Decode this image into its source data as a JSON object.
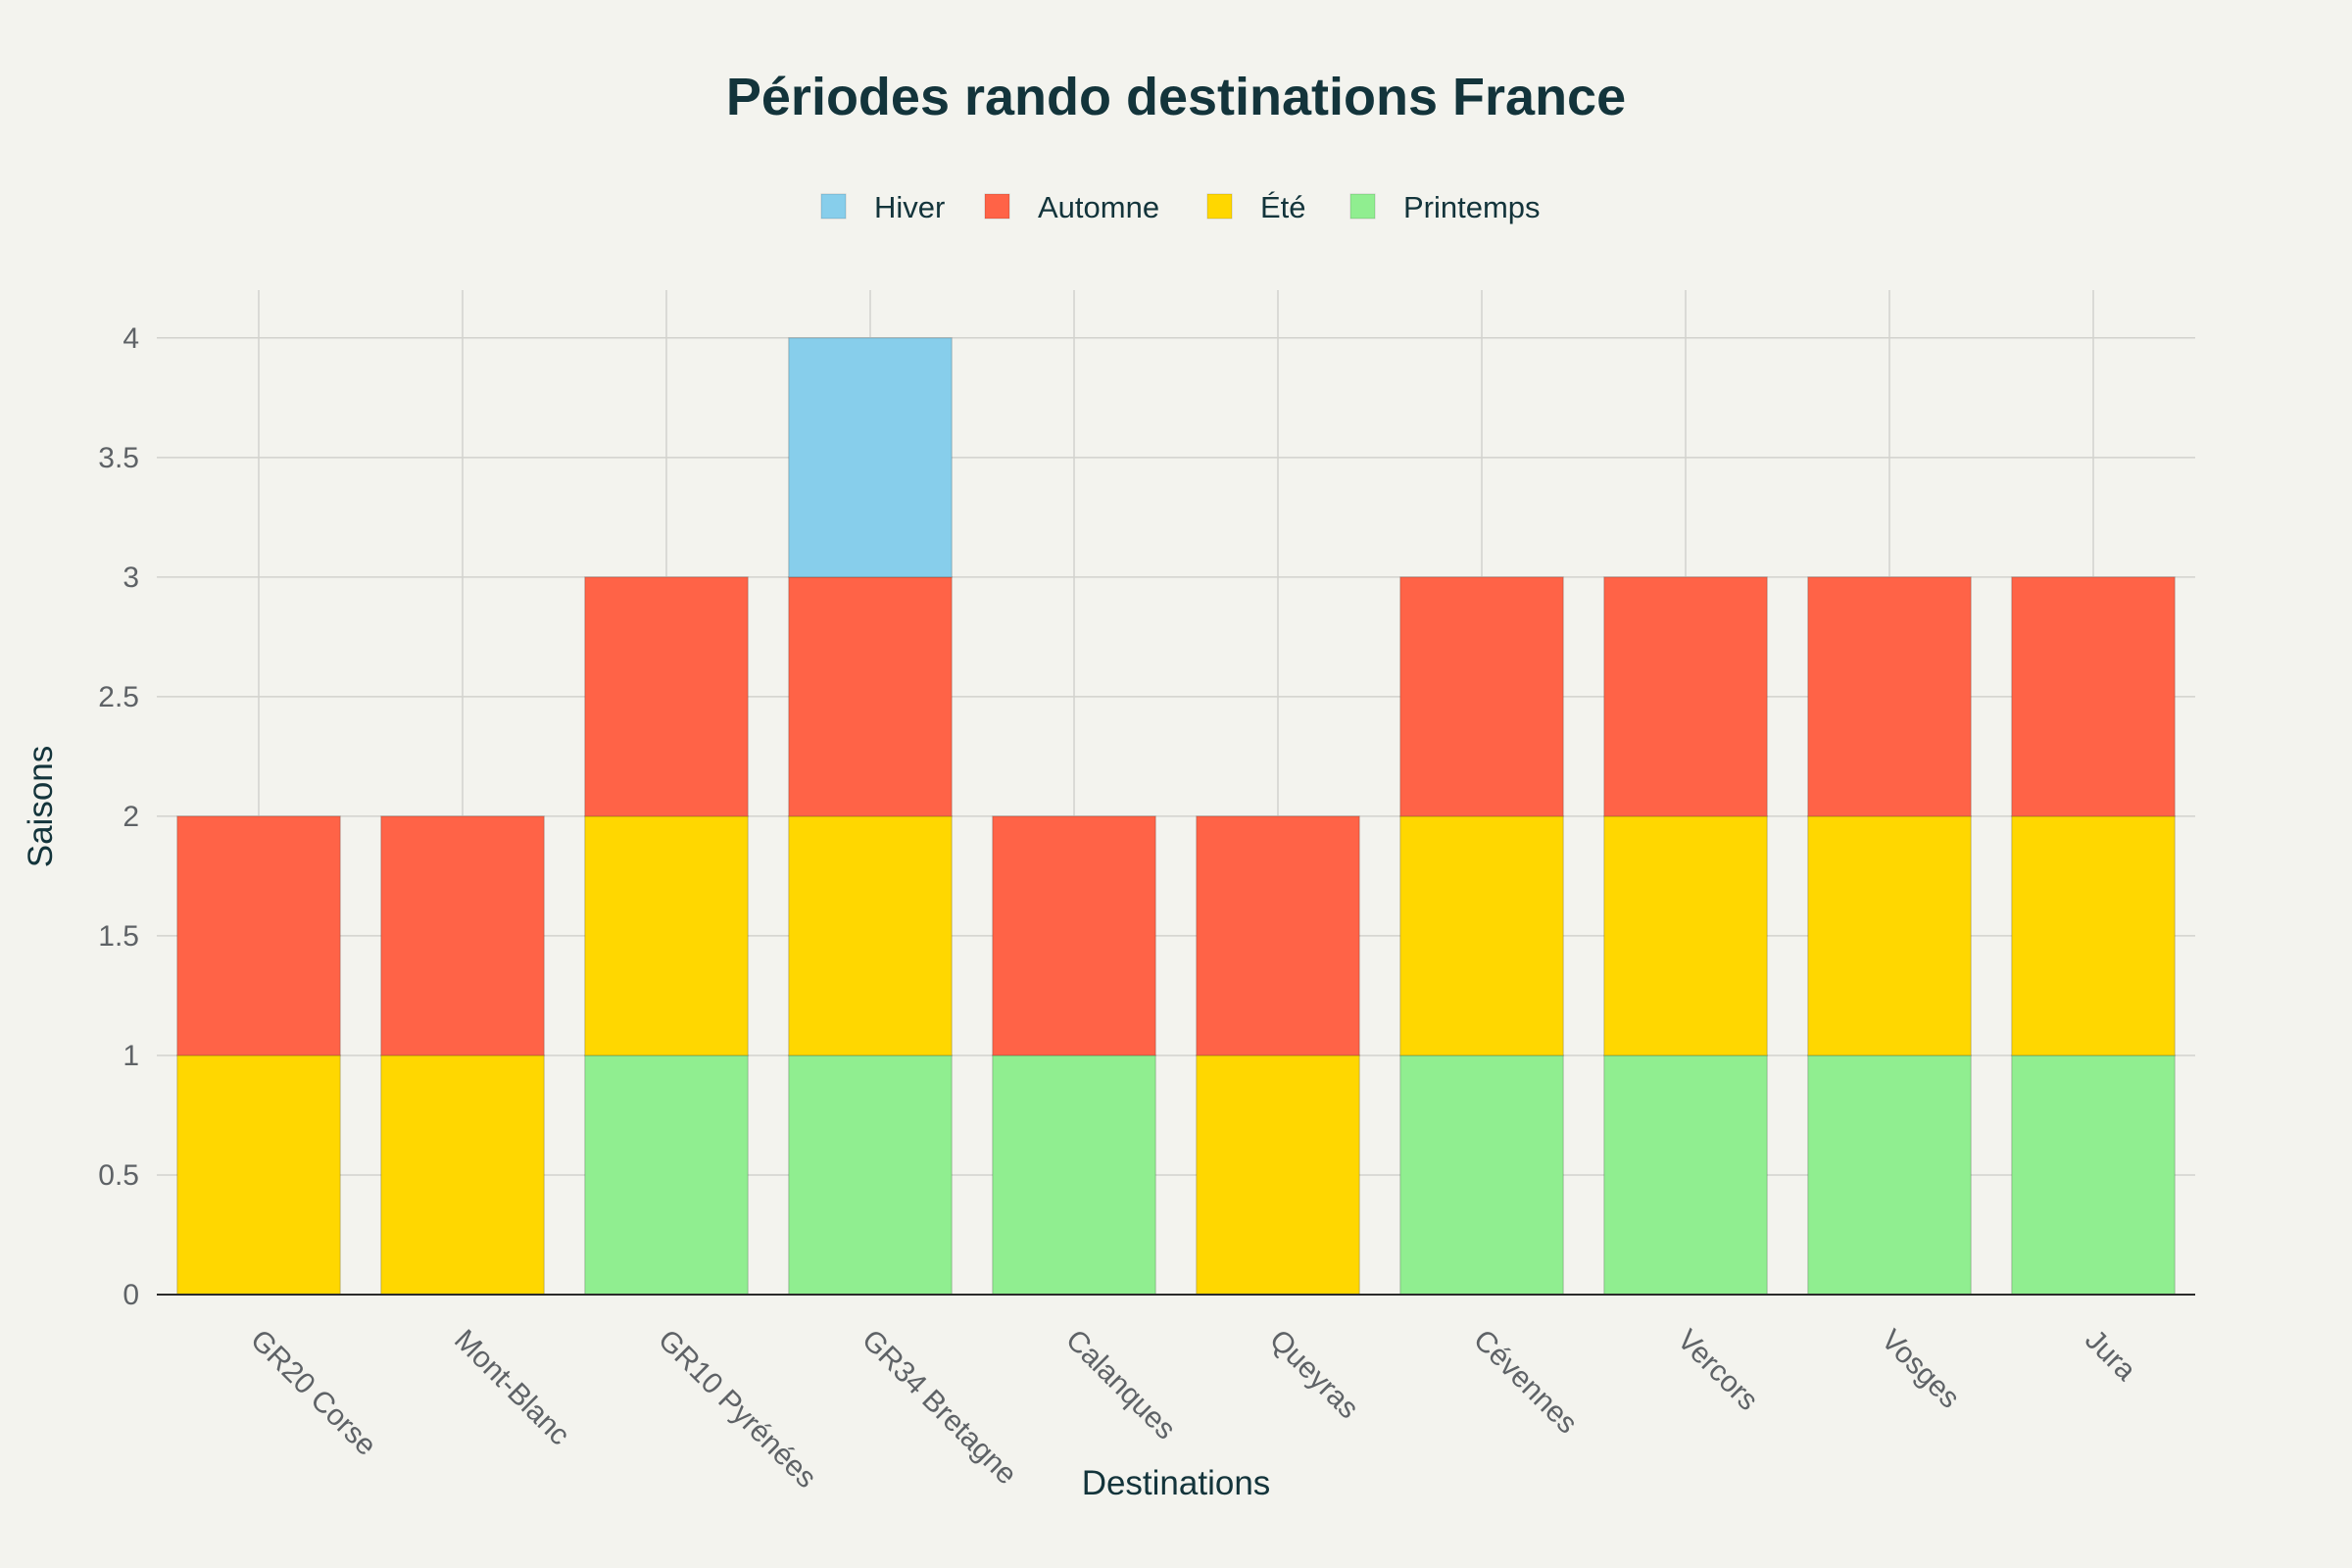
{
  "chart_data": {
    "type": "bar",
    "stacked": true,
    "title": "Périodes rando destinations France",
    "xlabel": "Destinations",
    "ylabel": "Saisons",
    "ylim": [
      0,
      4.2
    ],
    "yticks": [
      0,
      0.5,
      1,
      1.5,
      2,
      2.5,
      3,
      3.5,
      4
    ],
    "ytick_labels": [
      "0",
      "0.5",
      "1",
      "1.5",
      "2",
      "2.5",
      "3",
      "3.5",
      "4"
    ],
    "grid": true,
    "legend_position": "top-center",
    "categories": [
      "GR20 Corse",
      "Mont-Blanc",
      "GR10 Pyrénées",
      "GR34 Bretagne",
      "Calanques",
      "Queyras",
      "Cévennes",
      "Vercors",
      "Vosges",
      "Jura"
    ],
    "legend_order": [
      "Hiver",
      "Automne",
      "Été",
      "Printemps"
    ],
    "series": [
      {
        "name": "Printemps",
        "color": "#90EE90",
        "values": [
          0,
          0,
          1,
          1,
          1,
          0,
          1,
          1,
          1,
          1
        ]
      },
      {
        "name": "Été",
        "color": "#FFD700",
        "values": [
          1,
          1,
          1,
          1,
          0,
          1,
          1,
          1,
          1,
          1
        ]
      },
      {
        "name": "Automne",
        "color": "#FF6347",
        "values": [
          1,
          1,
          1,
          1,
          1,
          1,
          1,
          1,
          1,
          1
        ]
      },
      {
        "name": "Hiver",
        "color": "#87CEEB",
        "values": [
          0,
          0,
          0,
          1,
          0,
          0,
          0,
          0,
          0,
          0
        ]
      }
    ]
  }
}
